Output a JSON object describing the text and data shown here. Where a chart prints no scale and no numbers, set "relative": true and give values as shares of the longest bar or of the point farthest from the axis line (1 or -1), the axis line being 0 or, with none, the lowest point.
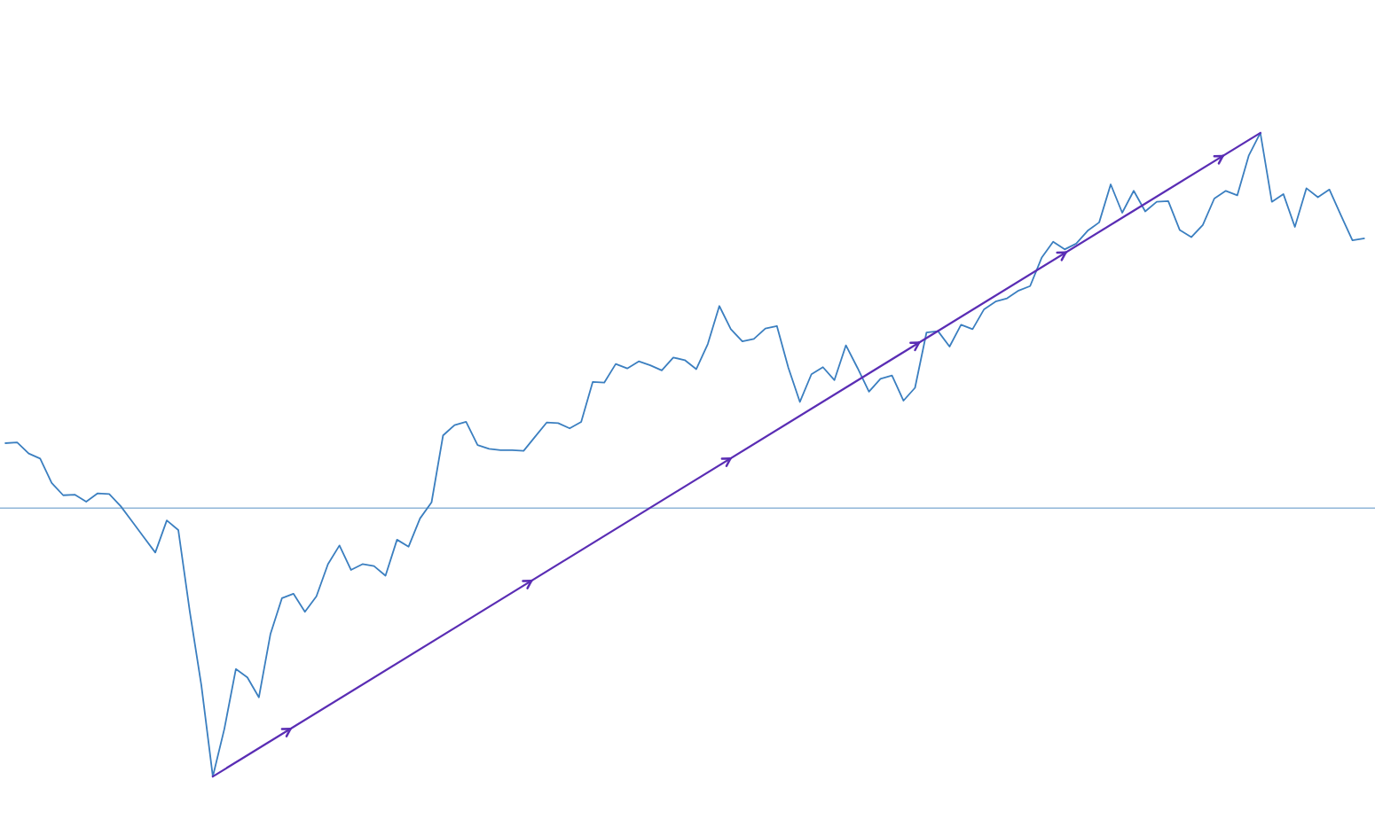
{
  "chart_data": {
    "type": "line",
    "relative": true,
    "categories": [
      null,
      null,
      null,
      null,
      null,
      null,
      null,
      null,
      null,
      null,
      null,
      null,
      null,
      null,
      null,
      null,
      null,
      null,
      null,
      null,
      null,
      null,
      null,
      null,
      null,
      null,
      null,
      null,
      null,
      null,
      null,
      null,
      null,
      null,
      null,
      null,
      null,
      null,
      null,
      null,
      null,
      null,
      null,
      null,
      null,
      null,
      null,
      null,
      null,
      null,
      null,
      null,
      null,
      null,
      null,
      null,
      null,
      null,
      null,
      null,
      null,
      null,
      null,
      null,
      null,
      null,
      null,
      null,
      null,
      null,
      null,
      null,
      null,
      null,
      null,
      null,
      null,
      null,
      null,
      null,
      null,
      null,
      null,
      null,
      null,
      null,
      null,
      null,
      null,
      null,
      null,
      null,
      null,
      null,
      null,
      null,
      null,
      null,
      null,
      null,
      null,
      null,
      null,
      null,
      null,
      null,
      null,
      null,
      null,
      null,
      null,
      null,
      null,
      null,
      null,
      null,
      null,
      null,
      null
    ],
    "series": [
      {
        "color": "#3b7fc0",
        "values": [
          0.518,
          0.519,
          0.502,
          0.494,
          0.456,
          0.437,
          0.438,
          0.427,
          0.44,
          0.439,
          0.42,
          0.396,
          0.372,
          0.348,
          0.398,
          0.383,
          0.256,
          0.142,
          0,
          0.074,
          0.167,
          0.154,
          0.123,
          0.221,
          0.277,
          0.284,
          0.256,
          0.28,
          0.33,
          0.359,
          0.321,
          0.33,
          0.327,
          0.312,
          0.368,
          0.357,
          0.401,
          0.426,
          0.53,
          0.546,
          0.551,
          0.515,
          0.509,
          0.507,
          0.507,
          0.506,
          0.528,
          0.55,
          0.549,
          0.541,
          0.551,
          0.613,
          0.612,
          0.641,
          0.634,
          0.645,
          0.639,
          0.631,
          0.651,
          0.647,
          0.633,
          0.672,
          0.731,
          0.695,
          0.676,
          0.68,
          0.696,
          0.7,
          0.635,
          0.582,
          0.625,
          0.636,
          0.616,
          0.67,
          0.635,
          0.598,
          0.618,
          0.623,
          0.584,
          0.604,
          0.69,
          0.692,
          0.668,
          0.702,
          0.695,
          0.726,
          0.738,
          0.743,
          0.755,
          0.762,
          0.806,
          0.831,
          0.819,
          0.828,
          0.848,
          0.861,
          0.92,
          0.876,
          0.91,
          0.878,
          0.893,
          0.894,
          0.849,
          0.838,
          0.857,
          0.898,
          0.91,
          0.903,
          0.965,
          1.0,
          0.893,
          0.905,
          0.854,
          0.914,
          0.9,
          0.912,
          0.872,
          0.833,
          0.836
        ]
      },
      {
        "type": "line",
        "color": "#5a2db4",
        "values": [
          null,
          null,
          null,
          null,
          null,
          null,
          null,
          null,
          null,
          null,
          null,
          null,
          null,
          null,
          null,
          null,
          null,
          null,
          0,
          null,
          null,
          null,
          null,
          null,
          null,
          null,
          null,
          null,
          null,
          null,
          null,
          null,
          null,
          null,
          null,
          null,
          null,
          null,
          null,
          null,
          null,
          null,
          null,
          null,
          null,
          null,
          null,
          null,
          null,
          null,
          null,
          null,
          null,
          null,
          null,
          null,
          null,
          null,
          null,
          null,
          null,
          null,
          null,
          null,
          null,
          null,
          null,
          null,
          null,
          null,
          null,
          null,
          null,
          null,
          null,
          null,
          null,
          null,
          null,
          null,
          null,
          null,
          null,
          null,
          null,
          null,
          null,
          null,
          null,
          null,
          null,
          null,
          null,
          null,
          null,
          null,
          null,
          null,
          null,
          null,
          null,
          null,
          null,
          null,
          null,
          null,
          null,
          null,
          null,
          1.0,
          null,
          null,
          null,
          null,
          null,
          null,
          null,
          null,
          null
        ]
      }
    ],
    "ref_lines": [
      {
        "axis": "y",
        "value": 0.417,
        "color": "#8fb6d8",
        "line_style": "solid"
      }
    ]
  }
}
